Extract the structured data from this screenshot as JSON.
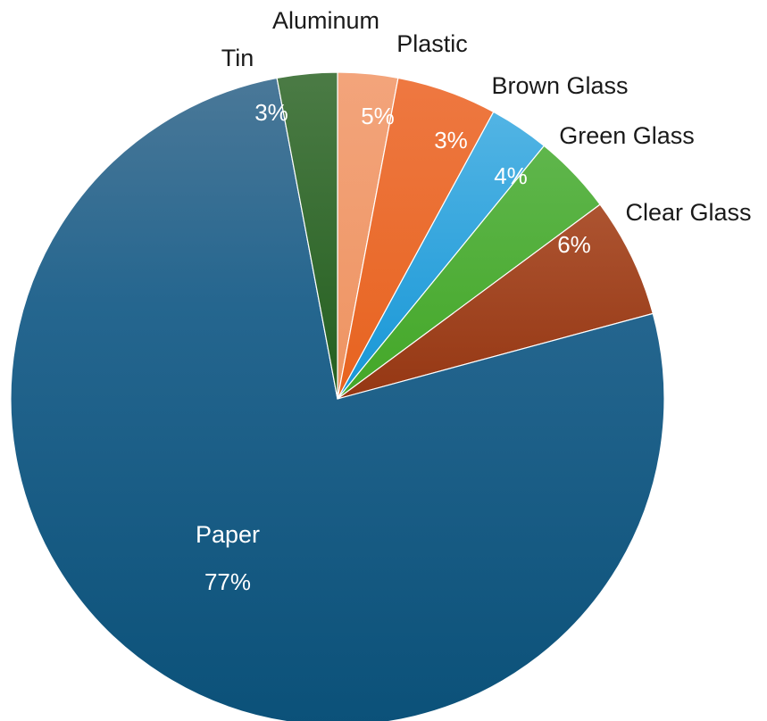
{
  "chart_data": {
    "type": "pie",
    "title": "",
    "categories": [
      "Paper",
      "Tin",
      "Aluminum",
      "Plastic",
      "Brown Glass",
      "Green Glass",
      "Clear Glass"
    ],
    "values": [
      77,
      3,
      3,
      5,
      3,
      4,
      6
    ],
    "percent_labels": [
      "77%",
      "3%",
      "",
      "5%",
      "3%",
      "4%",
      "6%"
    ],
    "colors": [
      "#1f5f86",
      "#2f6b2a",
      "#ee9a6a",
      "#ec6a32",
      "#3aa7e0",
      "#55b13f",
      "#a44a22"
    ],
    "legend": "none",
    "label_placement": "Paper label inside slice; all other category labels outside slice"
  }
}
